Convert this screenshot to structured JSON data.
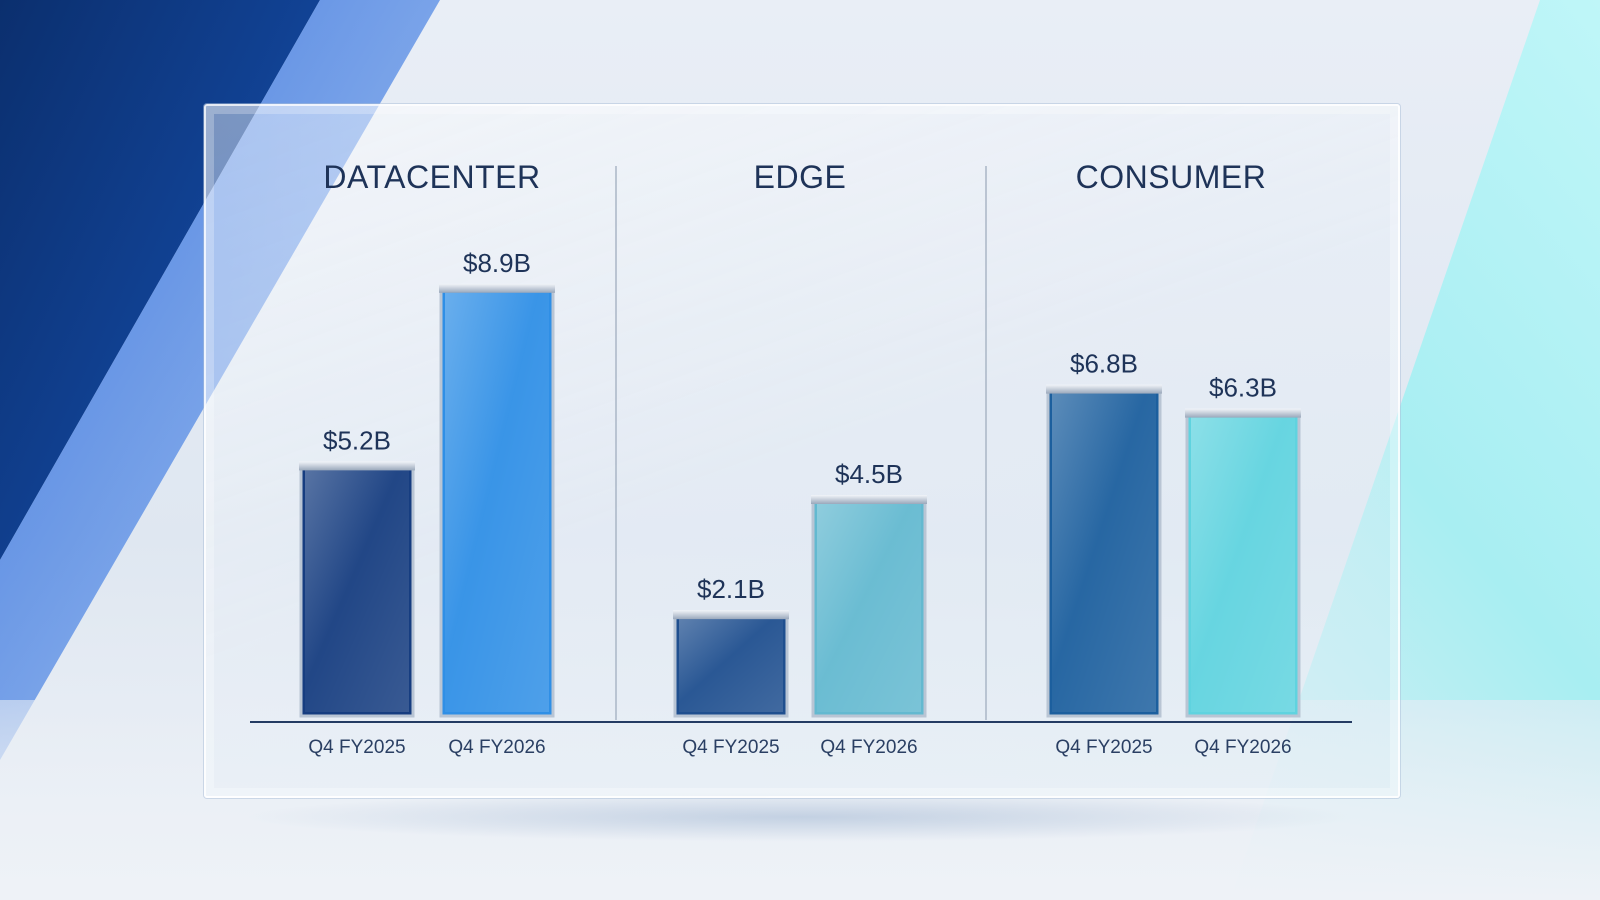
{
  "chart_data": {
    "type": "bar",
    "value_unit": "$B",
    "panels": [
      {
        "title": "DATACENTER",
        "categories": [
          "Q4 FY2025",
          "Q4 FY2026"
        ],
        "values": [
          5.2,
          8.9
        ],
        "value_labels": [
          "$5.2B",
          "$8.9B"
        ]
      },
      {
        "title": "EDGE",
        "categories": [
          "Q4 FY2025",
          "Q4 FY2026"
        ],
        "values": [
          2.1,
          4.5
        ],
        "value_labels": [
          "$2.1B",
          "$4.5B"
        ]
      },
      {
        "title": "CONSUMER",
        "categories": [
          "Q4 FY2025",
          "Q4 FY2026"
        ],
        "values": [
          6.8,
          6.3
        ],
        "value_labels": [
          "$6.8B",
          "$6.3B"
        ]
      }
    ],
    "ylim": [
      0,
      10
    ],
    "grid": false,
    "legend": "none"
  },
  "colors": {
    "datacenter_fy2025": "#163d80",
    "datacenter_fy2026": "#2f8fe6",
    "edge_fy2025": "#1f4f8f",
    "edge_fy2026": "#63b9d0",
    "consumer_fy2025": "#1c5f9e",
    "consumer_fy2026": "#5fd3df",
    "text": "#1e3358",
    "axis": "#243b63"
  }
}
